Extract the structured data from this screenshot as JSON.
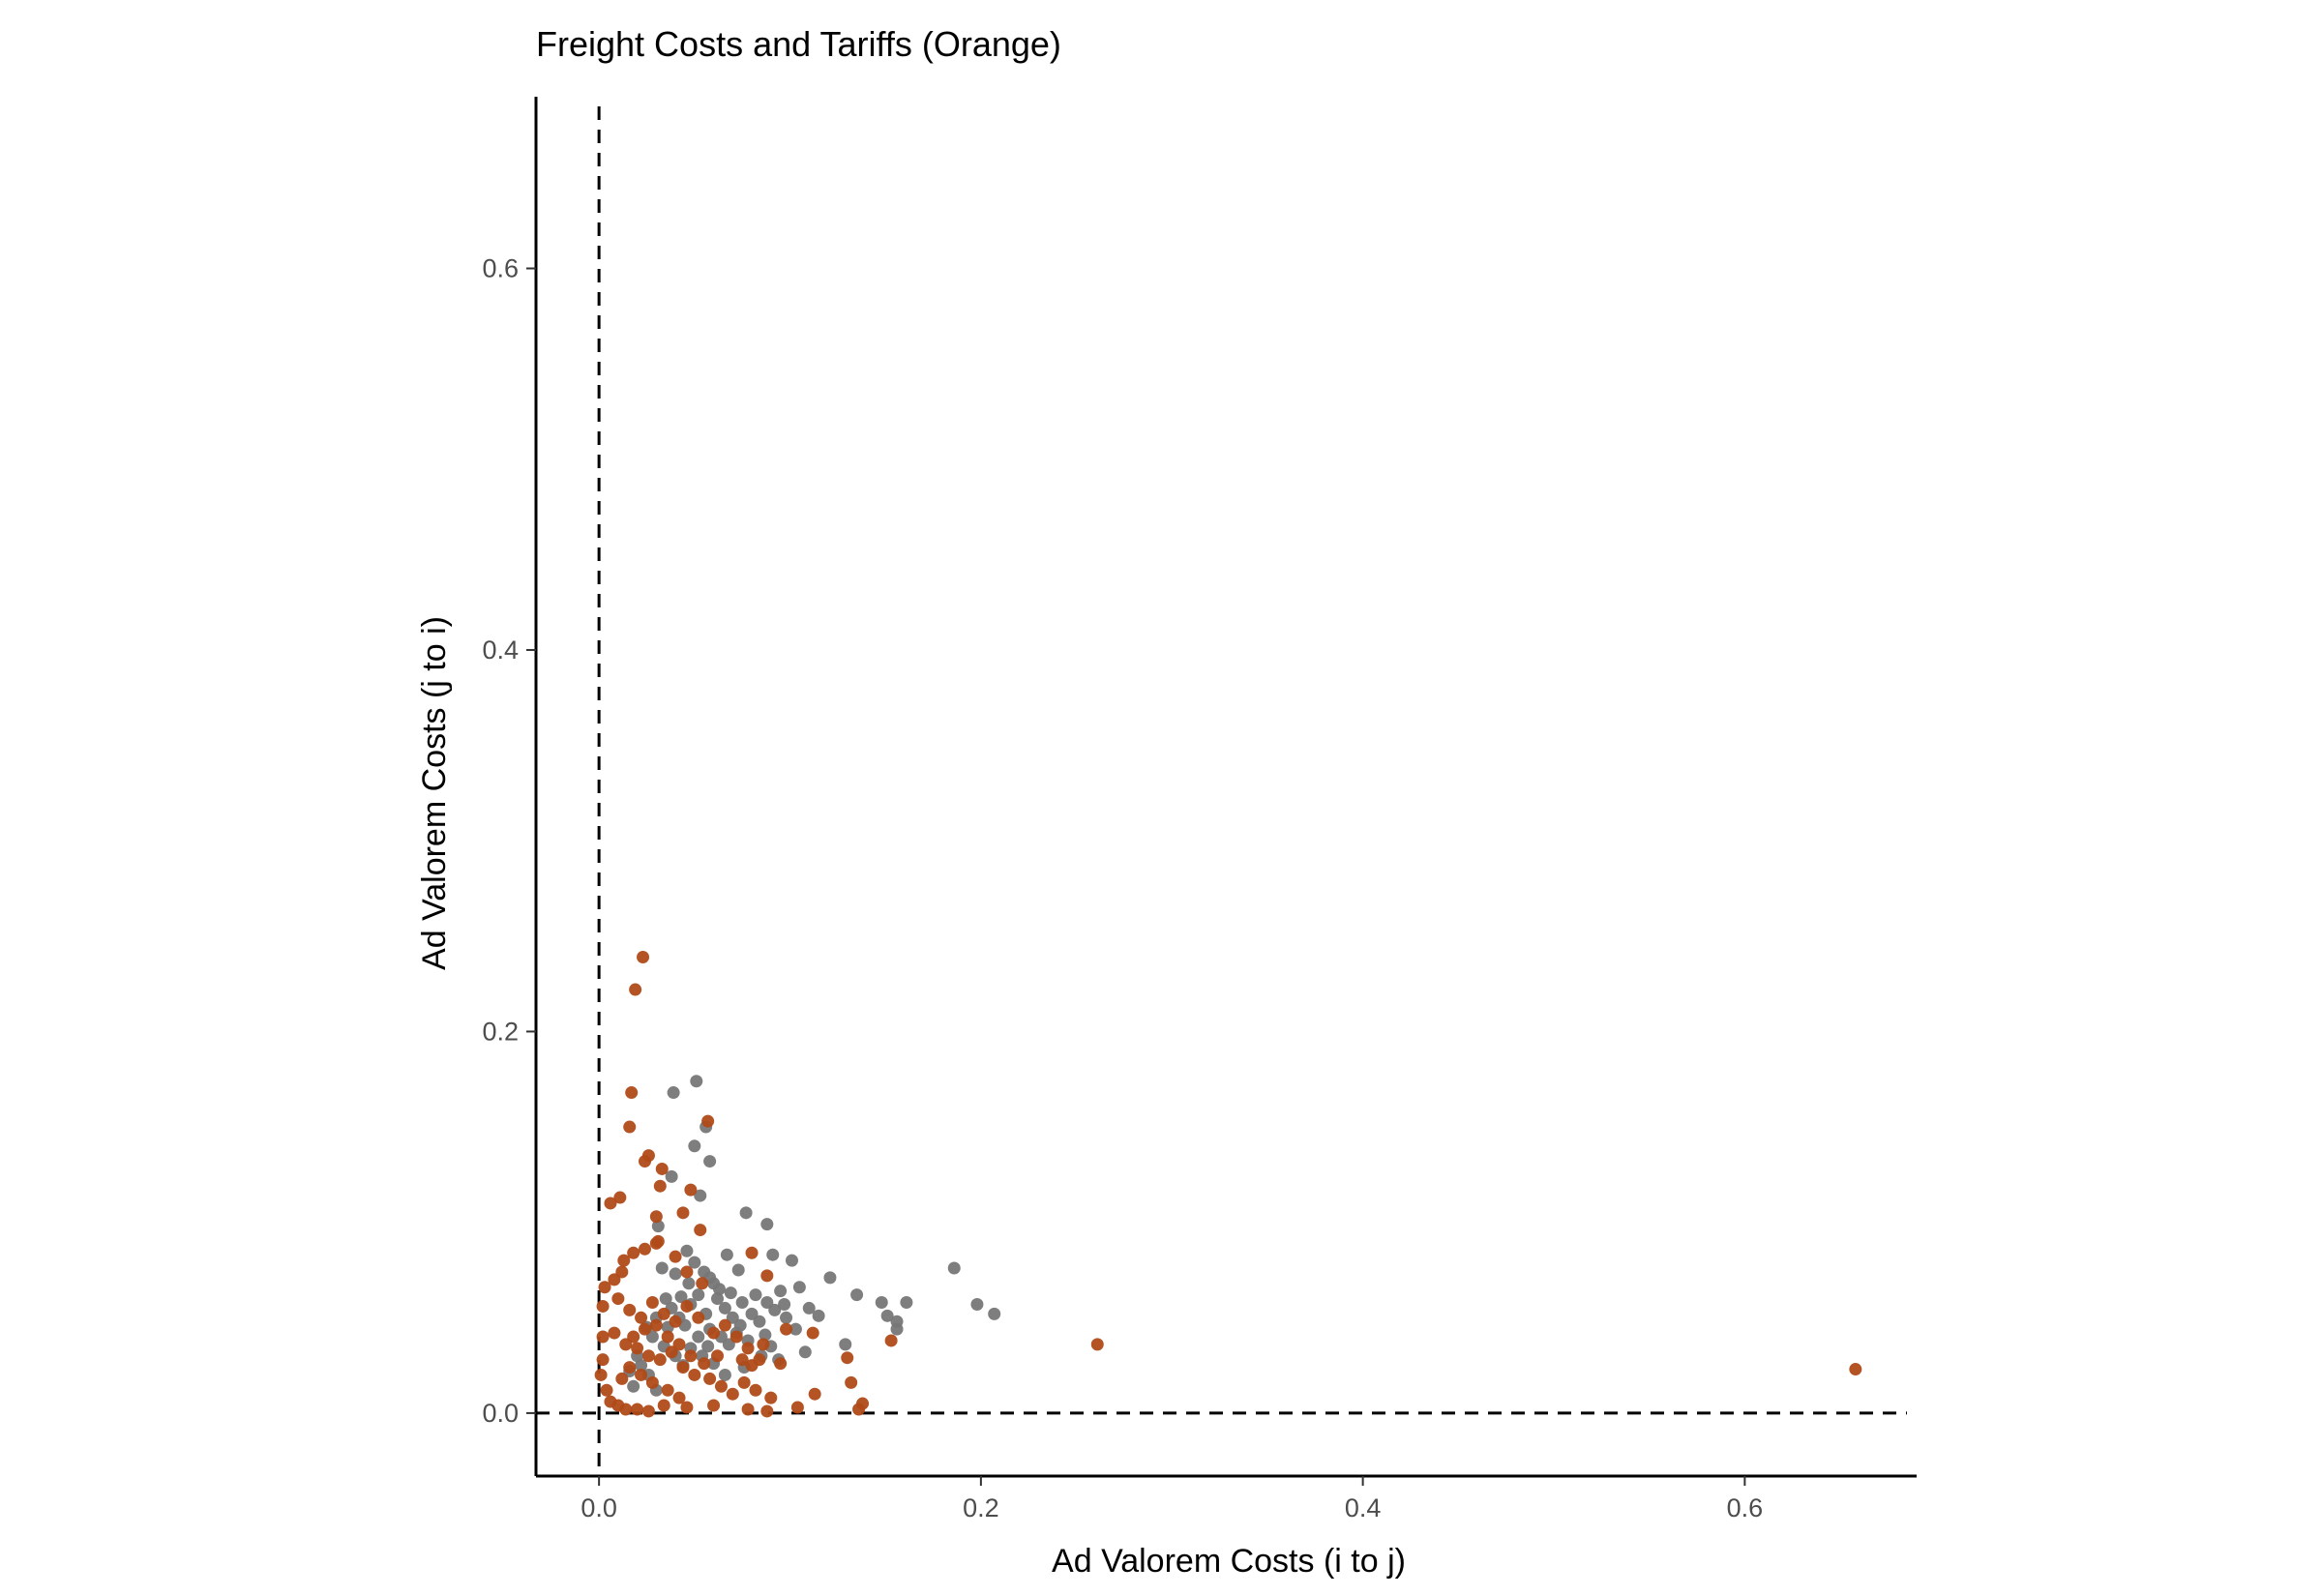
{
  "chart_data": {
    "type": "scatter",
    "title": "Freight Costs and Tariffs (Orange)",
    "xlabel": "Ad Valorem Costs (i to j)",
    "ylabel": "Ad Valorem Costs (j to i)",
    "xlim": [
      -0.033,
      0.69
    ],
    "ylim": [
      -0.033,
      0.69
    ],
    "xticks": [
      0.0,
      0.2,
      0.4,
      0.6
    ],
    "yticks": [
      0.0,
      0.2,
      0.4,
      0.6
    ],
    "xtick_labels": [
      "0.0",
      "0.2",
      "0.4",
      "0.6"
    ],
    "ytick_labels": [
      "0.0",
      "0.2",
      "0.4",
      "0.6"
    ],
    "grid": false,
    "reference_lines": {
      "x": 0,
      "y": 0,
      "style": "dashed"
    },
    "series": [
      {
        "name": "Freight Costs",
        "color": "#777777",
        "points": [
          [
            0.039,
            0.168
          ],
          [
            0.051,
            0.174
          ],
          [
            0.056,
            0.15
          ],
          [
            0.058,
            0.132
          ],
          [
            0.05,
            0.14
          ],
          [
            0.038,
            0.124
          ],
          [
            0.053,
            0.114
          ],
          [
            0.077,
            0.105
          ],
          [
            0.088,
            0.099
          ],
          [
            0.186,
            0.076
          ],
          [
            0.198,
            0.057
          ],
          [
            0.207,
            0.052
          ],
          [
            0.161,
            0.058
          ],
          [
            0.148,
            0.058
          ],
          [
            0.151,
            0.051
          ],
          [
            0.156,
            0.048
          ],
          [
            0.156,
            0.044
          ],
          [
            0.135,
            0.062
          ],
          [
            0.121,
            0.071
          ],
          [
            0.129,
            0.036
          ],
          [
            0.11,
            0.055
          ],
          [
            0.108,
            0.032
          ],
          [
            0.115,
            0.051
          ],
          [
            0.101,
            0.08
          ],
          [
            0.105,
            0.066
          ],
          [
            0.091,
            0.083
          ],
          [
            0.095,
            0.064
          ],
          [
            0.067,
            0.083
          ],
          [
            0.073,
            0.075
          ],
          [
            0.031,
            0.098
          ],
          [
            0.033,
            0.076
          ],
          [
            0.04,
            0.073
          ],
          [
            0.046,
            0.085
          ],
          [
            0.05,
            0.079
          ],
          [
            0.055,
            0.074
          ],
          [
            0.06,
            0.068
          ],
          [
            0.062,
            0.06
          ],
          [
            0.066,
            0.055
          ],
          [
            0.07,
            0.05
          ],
          [
            0.074,
            0.046
          ],
          [
            0.08,
            0.052
          ],
          [
            0.084,
            0.048
          ],
          [
            0.088,
            0.058
          ],
          [
            0.092,
            0.054
          ],
          [
            0.098,
            0.05
          ],
          [
            0.035,
            0.06
          ],
          [
            0.038,
            0.055
          ],
          [
            0.042,
            0.05
          ],
          [
            0.045,
            0.046
          ],
          [
            0.048,
            0.057
          ],
          [
            0.052,
            0.062
          ],
          [
            0.056,
            0.052
          ],
          [
            0.058,
            0.044
          ],
          [
            0.064,
            0.04
          ],
          [
            0.068,
            0.036
          ],
          [
            0.072,
            0.042
          ],
          [
            0.078,
            0.038
          ],
          [
            0.085,
            0.03
          ],
          [
            0.09,
            0.035
          ],
          [
            0.094,
            0.028
          ],
          [
            0.025,
            0.045
          ],
          [
            0.028,
            0.04
          ],
          [
            0.03,
            0.05
          ],
          [
            0.034,
            0.035
          ],
          [
            0.04,
            0.03
          ],
          [
            0.044,
            0.025
          ],
          [
            0.048,
            0.034
          ],
          [
            0.052,
            0.04
          ],
          [
            0.054,
            0.03
          ],
          [
            0.06,
            0.026
          ],
          [
            0.066,
            0.02
          ],
          [
            0.076,
            0.024
          ],
          [
            0.02,
            0.03
          ],
          [
            0.022,
            0.025
          ],
          [
            0.026,
            0.02
          ],
          [
            0.03,
            0.012
          ],
          [
            0.018,
            0.014
          ],
          [
            0.016,
            0.022
          ],
          [
            0.043,
            0.061
          ],
          [
            0.047,
            0.068
          ],
          [
            0.058,
            0.071
          ],
          [
            0.063,
            0.065
          ],
          [
            0.069,
            0.063
          ],
          [
            0.075,
            0.058
          ],
          [
            0.082,
            0.062
          ],
          [
            0.097,
            0.057
          ],
          [
            0.103,
            0.044
          ],
          [
            0.087,
            0.041
          ],
          [
            0.057,
            0.035
          ],
          [
            0.036,
            0.045
          ]
        ]
      },
      {
        "name": "Tariffs",
        "color": "#B04A18",
        "points": [
          [
            0.023,
            0.239
          ],
          [
            0.019,
            0.222
          ],
          [
            0.017,
            0.168
          ],
          [
            0.016,
            0.15
          ],
          [
            0.057,
            0.153
          ],
          [
            0.024,
            0.132
          ],
          [
            0.026,
            0.135
          ],
          [
            0.033,
            0.128
          ],
          [
            0.032,
            0.119
          ],
          [
            0.006,
            0.11
          ],
          [
            0.011,
            0.113
          ],
          [
            0.03,
            0.103
          ],
          [
            0.044,
            0.105
          ],
          [
            0.048,
            0.117
          ],
          [
            0.053,
            0.096
          ],
          [
            0.261,
            0.036
          ],
          [
            0.658,
            0.023
          ],
          [
            0.153,
            0.038
          ],
          [
            0.03,
            0.089
          ],
          [
            0.04,
            0.082
          ],
          [
            0.046,
            0.074
          ],
          [
            0.054,
            0.068
          ],
          [
            0.08,
            0.084
          ],
          [
            0.088,
            0.072
          ],
          [
            0.112,
            0.042
          ],
          [
            0.013,
            0.08
          ],
          [
            0.018,
            0.084
          ],
          [
            0.024,
            0.086
          ],
          [
            0.031,
            0.09
          ],
          [
            0.008,
            0.07
          ],
          [
            0.012,
            0.074
          ],
          [
            0.003,
            0.066
          ],
          [
            0.002,
            0.056
          ],
          [
            0.01,
            0.06
          ],
          [
            0.016,
            0.054
          ],
          [
            0.022,
            0.05
          ],
          [
            0.028,
            0.058
          ],
          [
            0.034,
            0.052
          ],
          [
            0.04,
            0.048
          ],
          [
            0.046,
            0.056
          ],
          [
            0.052,
            0.05
          ],
          [
            0.06,
            0.042
          ],
          [
            0.066,
            0.046
          ],
          [
            0.072,
            0.04
          ],
          [
            0.078,
            0.034
          ],
          [
            0.084,
            0.028
          ],
          [
            0.095,
            0.026
          ],
          [
            0.002,
            0.04
          ],
          [
            0.008,
            0.042
          ],
          [
            0.014,
            0.036
          ],
          [
            0.02,
            0.034
          ],
          [
            0.026,
            0.03
          ],
          [
            0.032,
            0.028
          ],
          [
            0.038,
            0.032
          ],
          [
            0.044,
            0.024
          ],
          [
            0.05,
            0.02
          ],
          [
            0.058,
            0.018
          ],
          [
            0.064,
            0.014
          ],
          [
            0.07,
            0.01
          ],
          [
            0.076,
            0.016
          ],
          [
            0.082,
            0.012
          ],
          [
            0.09,
            0.008
          ],
          [
            0.012,
            0.018
          ],
          [
            0.016,
            0.024
          ],
          [
            0.022,
            0.02
          ],
          [
            0.028,
            0.016
          ],
          [
            0.036,
            0.012
          ],
          [
            0.042,
            0.008
          ],
          [
            0.004,
            0.012
          ],
          [
            0.006,
            0.006
          ],
          [
            0.01,
            0.004
          ],
          [
            0.014,
            0.002
          ],
          [
            0.02,
            0.002
          ],
          [
            0.026,
            0.001
          ],
          [
            0.034,
            0.004
          ],
          [
            0.046,
            0.003
          ],
          [
            0.06,
            0.004
          ],
          [
            0.078,
            0.002
          ],
          [
            0.088,
            0.001
          ],
          [
            0.104,
            0.003
          ],
          [
            0.136,
            0.002
          ],
          [
            0.138,
            0.005
          ],
          [
            0.132,
            0.016
          ],
          [
            0.13,
            0.029
          ],
          [
            0.113,
            0.01
          ],
          [
            0.086,
            0.036
          ],
          [
            0.08,
            0.025
          ],
          [
            0.001,
            0.02
          ],
          [
            0.002,
            0.028
          ],
          [
            0.018,
            0.04
          ],
          [
            0.024,
            0.044
          ],
          [
            0.03,
            0.046
          ],
          [
            0.036,
            0.04
          ],
          [
            0.042,
            0.036
          ],
          [
            0.048,
            0.03
          ],
          [
            0.055,
            0.026
          ],
          [
            0.062,
            0.03
          ],
          [
            0.075,
            0.028
          ],
          [
            0.098,
            0.044
          ]
        ]
      }
    ]
  }
}
